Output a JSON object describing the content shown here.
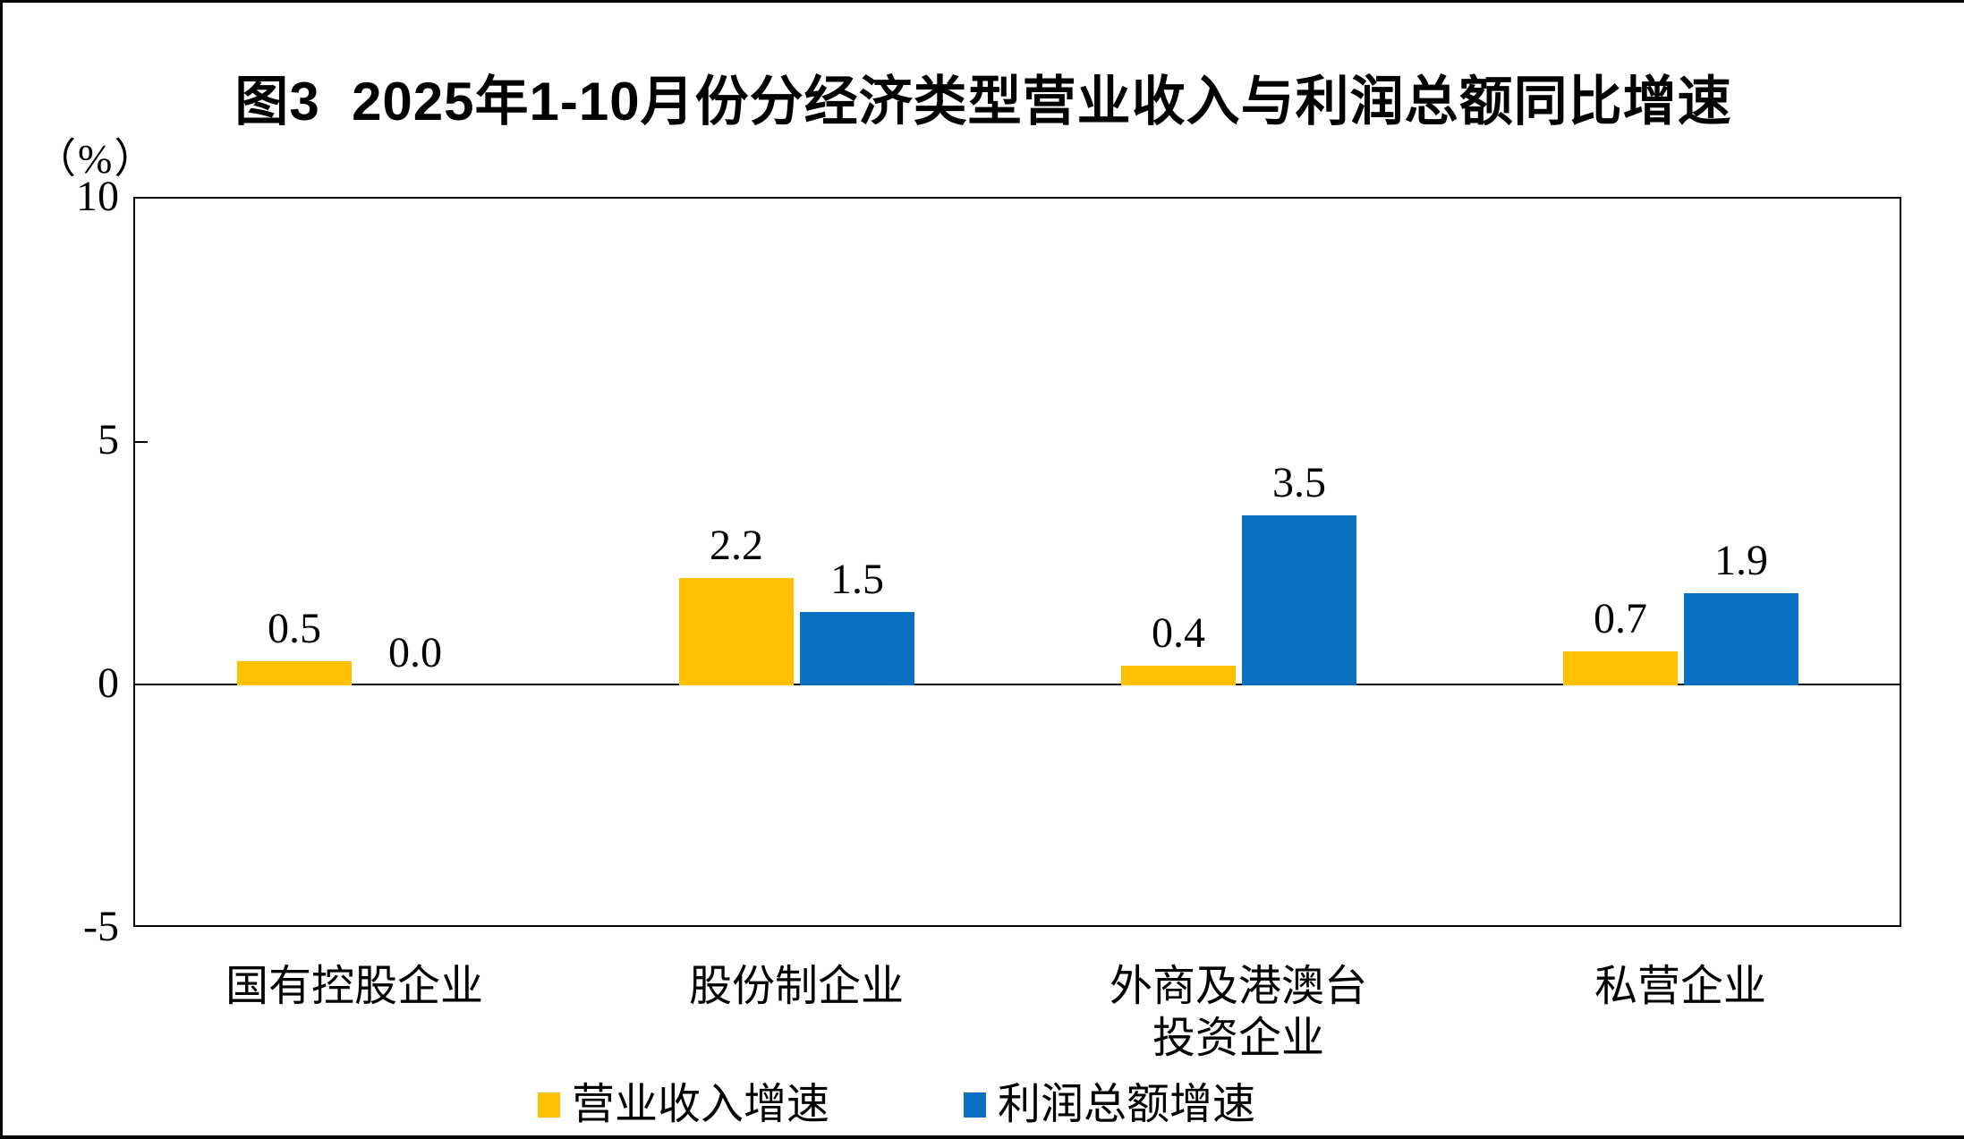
{
  "chart_data": {
    "type": "bar",
    "title": "图3  2025年1-10月份分经济类型营业收入与利润总额同比增速",
    "unit_label": "（%）",
    "categories": [
      "国有控股企业",
      "股份制企业",
      "外商及港澳台投资企业",
      "私营企业"
    ],
    "category_label_lines": [
      [
        "国有控股企业"
      ],
      [
        "股份制企业"
      ],
      [
        "外商及港澳台",
        "投资企业"
      ],
      [
        "私营企业"
      ]
    ],
    "series": [
      {
        "name": "营业收入增速",
        "color": "#FFC000",
        "values": [
          0.5,
          2.2,
          0.4,
          0.7
        ],
        "data_labels": [
          "0.5",
          "2.2",
          "0.4",
          "0.7"
        ]
      },
      {
        "name": "利润总额增速",
        "color": "#0B70C1",
        "values": [
          0.0,
          1.5,
          3.5,
          1.9
        ],
        "data_labels": [
          "0.0",
          "1.5",
          "3.5",
          "1.9"
        ]
      }
    ],
    "y_axis": {
      "tick_labels": [
        "10",
        "5",
        "0",
        "-5"
      ],
      "tick_values": [
        10,
        5,
        0,
        -5
      ],
      "min": -5,
      "max": 10
    },
    "legend_position": "bottom",
    "grid": "zero-line-only",
    "axis_color": "#000000",
    "background_color": "#FFFFFF"
  }
}
